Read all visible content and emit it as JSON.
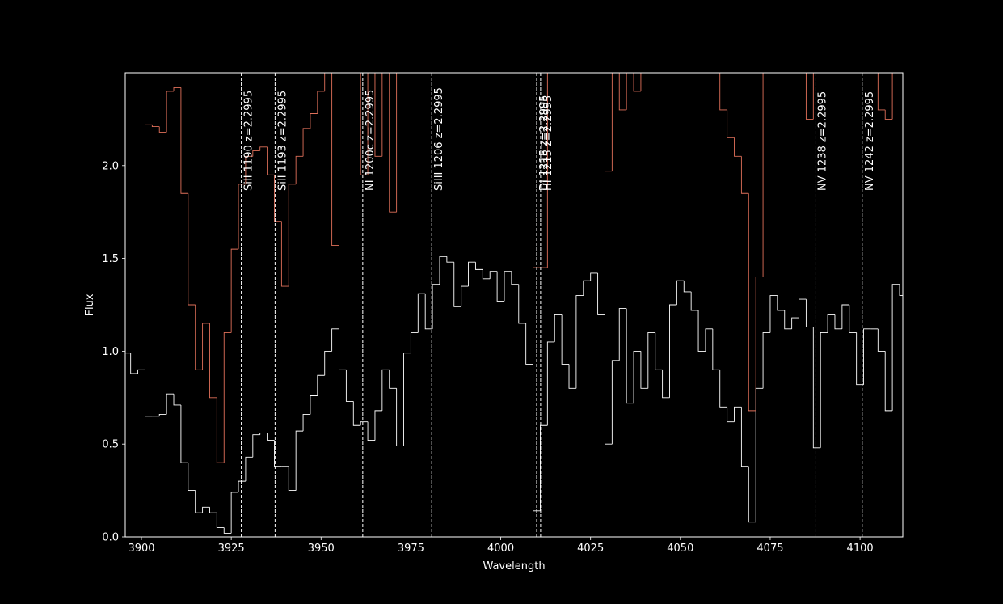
{
  "chart_data": {
    "type": "step",
    "xlabel": "Wavelength",
    "ylabel": "Flux",
    "xlim": [
      3895.5,
      4111.9
    ],
    "ylim": [
      0,
      2.5
    ],
    "xticks": [
      3900,
      3925,
      3950,
      3975,
      4000,
      4025,
      4050,
      4075,
      4100
    ],
    "yticks": [
      {
        "value": 0,
        "label": "0.0"
      },
      0.5,
      {
        "value": 1,
        "label": "1.0"
      },
      1.5,
      {
        "value": 2,
        "label": "2.0"
      }
    ],
    "x": [
      3896,
      3898,
      3900,
      3902,
      3904,
      3906,
      3908,
      3910,
      3912,
      3914,
      3916,
      3918,
      3920,
      3922,
      3924,
      3926,
      3928,
      3930,
      3932,
      3934,
      3936,
      3938,
      3940,
      3942,
      3944,
      3946,
      3948,
      3950,
      3952,
      3954,
      3956,
      3958,
      3960,
      3962,
      3964,
      3966,
      3968,
      3970,
      3972,
      3974,
      3976,
      3978,
      3980,
      3982,
      3984,
      3986,
      3988,
      3990,
      3992,
      3994,
      3996,
      3998,
      4000,
      4002,
      4004,
      4006,
      4008,
      4010,
      4012,
      4014,
      4016,
      4018,
      4020,
      4022,
      4024,
      4026,
      4028,
      4030,
      4032,
      4034,
      4036,
      4038,
      4040,
      4042,
      4044,
      4046,
      4048,
      4050,
      4052,
      4054,
      4056,
      4058,
      4060,
      4062,
      4064,
      4066,
      4068,
      4070,
      4072,
      4074,
      4076,
      4078,
      4080,
      4082,
      4084,
      4086,
      4088,
      4090,
      4092,
      4094,
      4096,
      4098,
      4100,
      4102,
      4104,
      4106,
      4108,
      4110,
      4112
    ],
    "series": [
      {
        "color": "#ffffff",
        "values": [
          0.99,
          0.88,
          0.9,
          0.65,
          0.65,
          0.66,
          0.77,
          0.71,
          0.4,
          0.25,
          0.13,
          0.16,
          0.13,
          0.05,
          0.02,
          0.24,
          0.3,
          0.43,
          0.55,
          0.56,
          0.52,
          0.38,
          0.38,
          0.25,
          0.57,
          0.66,
          0.76,
          0.87,
          1.0,
          1.12,
          0.9,
          0.73,
          0.6,
          0.62,
          0.52,
          0.68,
          0.9,
          0.8,
          0.49,
          0.99,
          1.1,
          1.31,
          1.12,
          1.36,
          1.51,
          1.48,
          1.24,
          1.35,
          1.48,
          1.44,
          1.39,
          1.43,
          1.27,
          1.43,
          1.36,
          1.15,
          0.93,
          0.14,
          0.6,
          1.05,
          1.2,
          0.93,
          0.8,
          1.3,
          1.38,
          1.42,
          1.2,
          0.5,
          0.95,
          1.23,
          0.72,
          1.0,
          0.8,
          1.1,
          0.9,
          0.75,
          1.25,
          1.38,
          1.32,
          1.22,
          1.0,
          1.12,
          0.9,
          0.7,
          0.62,
          0.7,
          0.38,
          0.08,
          0.8,
          1.1,
          1.3,
          1.22,
          1.12,
          1.18,
          1.28,
          1.13,
          0.48,
          1.1,
          1.2,
          1.12,
          1.25,
          1.1,
          0.82,
          1.12,
          1.12,
          1.0,
          0.68,
          1.36,
          1.3
        ]
      },
      {
        "color": "#e0705a",
        "values": [
          2.6,
          2.6,
          2.6,
          2.22,
          2.21,
          2.18,
          2.4,
          2.42,
          1.85,
          1.25,
          0.9,
          1.15,
          0.75,
          0.4,
          1.1,
          1.55,
          1.9,
          2.05,
          2.08,
          2.1,
          1.95,
          1.7,
          1.35,
          1.9,
          2.05,
          2.2,
          2.28,
          2.4,
          2.5,
          1.57,
          2.55,
          2.6,
          2.6,
          1.95,
          2.6,
          2.05,
          2.6,
          1.75,
          2.6,
          2.6,
          2.6,
          2.6,
          2.6,
          2.6,
          2.6,
          2.6,
          2.6,
          2.6,
          2.6,
          2.6,
          2.6,
          2.6,
          2.6,
          2.6,
          2.6,
          2.6,
          2.6,
          1.45,
          1.45,
          2.6,
          2.6,
          2.6,
          2.6,
          2.6,
          2.6,
          2.6,
          2.6,
          1.97,
          2.6,
          2.3,
          2.6,
          2.4,
          2.6,
          2.6,
          2.6,
          2.6,
          2.6,
          2.6,
          2.6,
          2.6,
          2.6,
          2.6,
          2.6,
          2.3,
          2.15,
          2.05,
          1.85,
          0.68,
          1.4,
          2.6,
          2.6,
          2.6,
          2.6,
          2.6,
          2.6,
          2.25,
          2.6,
          2.6,
          2.6,
          2.6,
          2.6,
          2.6,
          2.6,
          2.6,
          2.6,
          2.3,
          2.25,
          2.6,
          2.6
        ]
      }
    ],
    "lines": [
      {
        "x": 3927.8,
        "label": "SiII 1190  z=2.2995"
      },
      {
        "x": 3937.2,
        "label": "SiII 1193  z=2.2995"
      },
      {
        "x": 3961.6,
        "label": "NI 1200c  z=2.2995"
      },
      {
        "x": 3980.8,
        "label": "SiIII 1206  z=2.2995"
      },
      {
        "x": 4010.0,
        "label": "DI 1215  z=2.2995"
      },
      {
        "x": 4011.1,
        "label": "HI 1215  z=2.2995"
      },
      {
        "x": 4087.5,
        "label": "NV 1238  z=2.2995"
      },
      {
        "x": 4100.6,
        "label": "NV 1242  z=2.2995"
      }
    ]
  }
}
